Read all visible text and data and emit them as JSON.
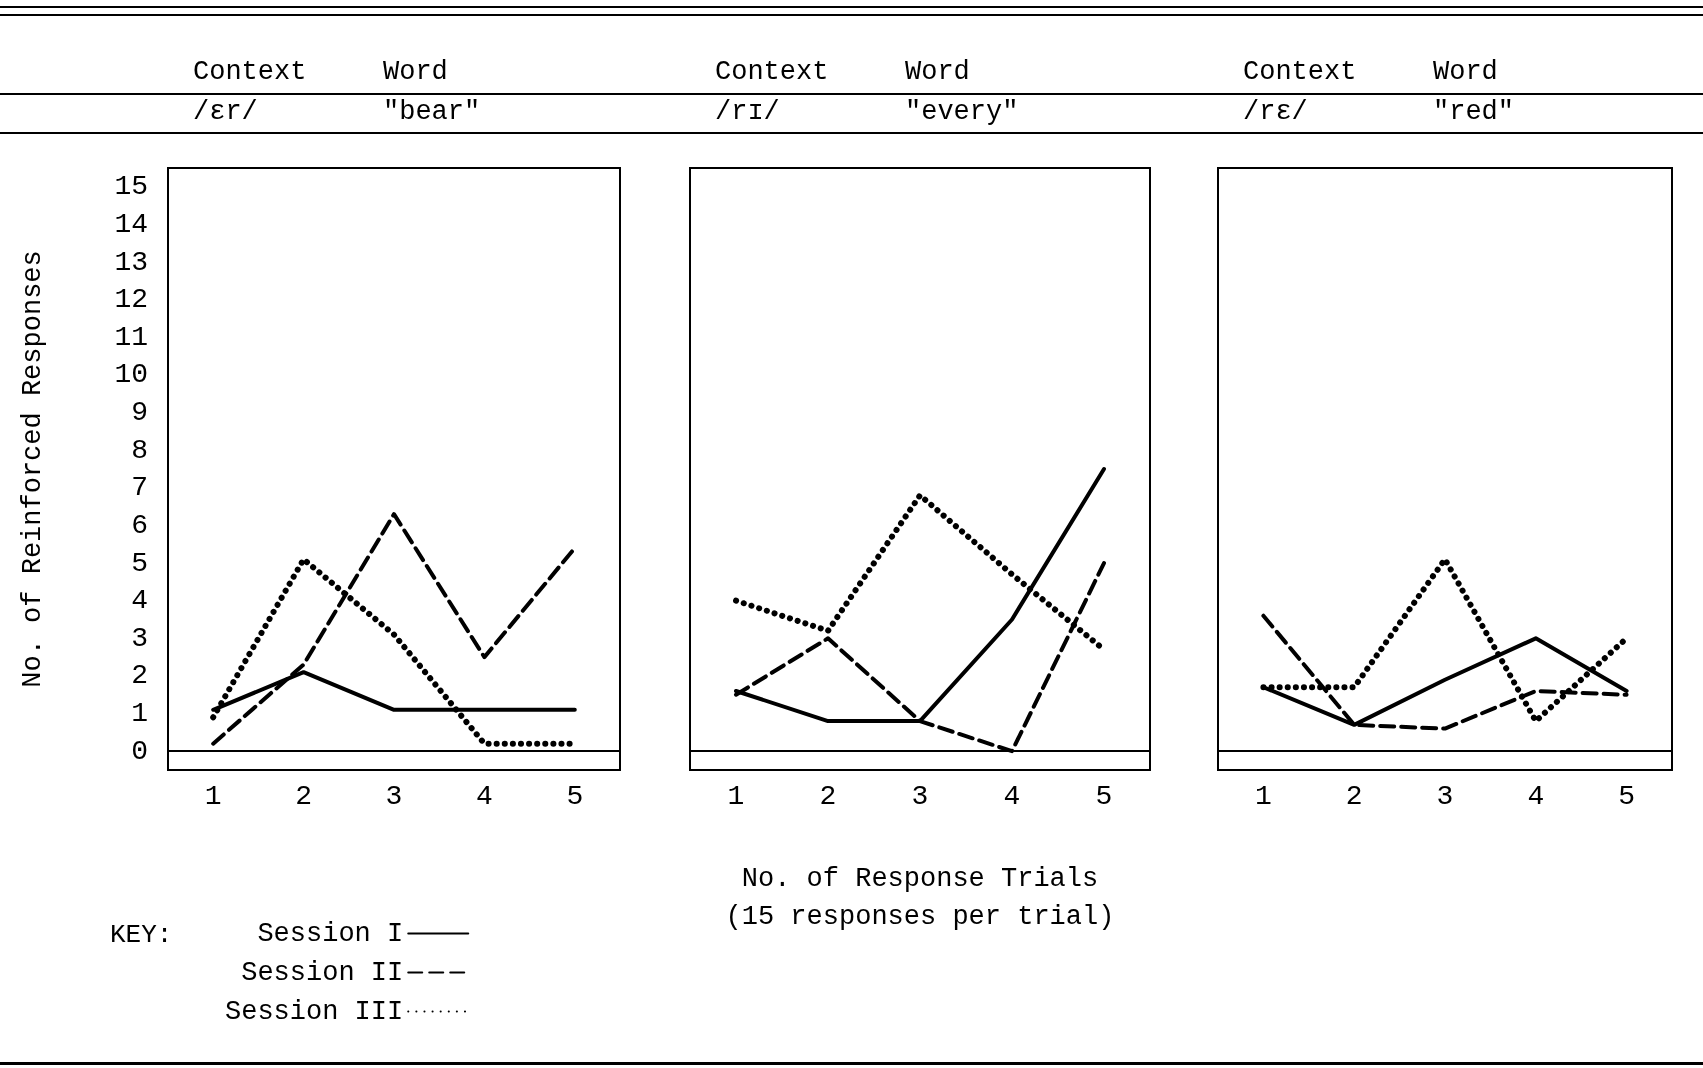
{
  "chart_data": [
    {
      "type": "line",
      "annotations": [
        "Context",
        "Word",
        "/ɛr/",
        "\"bear\""
      ],
      "ylabel": "No. of Reinforced Responses",
      "categories": [
        "1",
        "2",
        "3",
        "4",
        "5"
      ],
      "ylim": [
        -0.5,
        15.5
      ],
      "yticks": [
        0,
        1,
        2,
        3,
        4,
        5,
        6,
        7,
        8,
        9,
        10,
        11,
        12,
        13,
        14,
        15
      ],
      "marker": "none",
      "legend": "bottom left",
      "legend_title": "KEY:",
      "series": [
        {
          "name": "Session I",
          "color": "#000000",
          "line_style": "solid",
          "values": [
            1.1,
            2.1,
            1.1,
            1.1,
            1.1
          ]
        },
        {
          "name": "Session II",
          "color": "#000000",
          "line_style": "dashed",
          "values": [
            0.2,
            2.3,
            6.3,
            2.5,
            5.4
          ]
        },
        {
          "name": "Session III",
          "color": "#000000",
          "line_style": "dotted",
          "values": [
            0.9,
            5.1,
            3.1,
            0.2,
            0.2
          ]
        }
      ]
    },
    {
      "type": "line",
      "annotations": [
        "Context",
        "Word",
        "/rɪ/",
        "\"every\""
      ],
      "xlabel": "No. of Response Trials\n(15 responses per trial)",
      "categories": [
        "1",
        "2",
        "3",
        "4",
        "5"
      ],
      "ylim": [
        -0.5,
        15.5
      ],
      "tick_labels": "x",
      "marker": "none",
      "series": [
        {
          "color": "#000000",
          "line_style": "solid",
          "values": [
            1.6,
            0.8,
            0.8,
            3.5,
            7.5
          ]
        },
        {
          "color": "#000000",
          "line_style": "dashed",
          "values": [
            1.5,
            3.0,
            0.8,
            0,
            5.0
          ]
        },
        {
          "color": "#000000",
          "line_style": "dotted",
          "values": [
            4.0,
            3.2,
            6.8,
            4.7,
            2.7
          ]
        }
      ]
    },
    {
      "type": "line",
      "annotations": [
        "Context",
        "Word",
        "/rɛ/",
        "\"red\""
      ],
      "categories": [
        "1",
        "2",
        "3",
        "4",
        "5"
      ],
      "ylim": [
        -0.5,
        15.5
      ],
      "tick_labels": "x",
      "marker": "none",
      "series": [
        {
          "color": "#000000",
          "line_style": "solid",
          "values": [
            1.7,
            0.7,
            1.9,
            3.0,
            1.6
          ]
        },
        {
          "color": "#000000",
          "line_style": "dashed",
          "values": [
            3.6,
            0.7,
            0.6,
            1.6,
            1.5
          ]
        },
        {
          "color": "#000000",
          "line_style": "dotted",
          "values": [
            1.7,
            1.7,
            5.1,
            0.8,
            3.0
          ]
        }
      ]
    }
  ]
}
